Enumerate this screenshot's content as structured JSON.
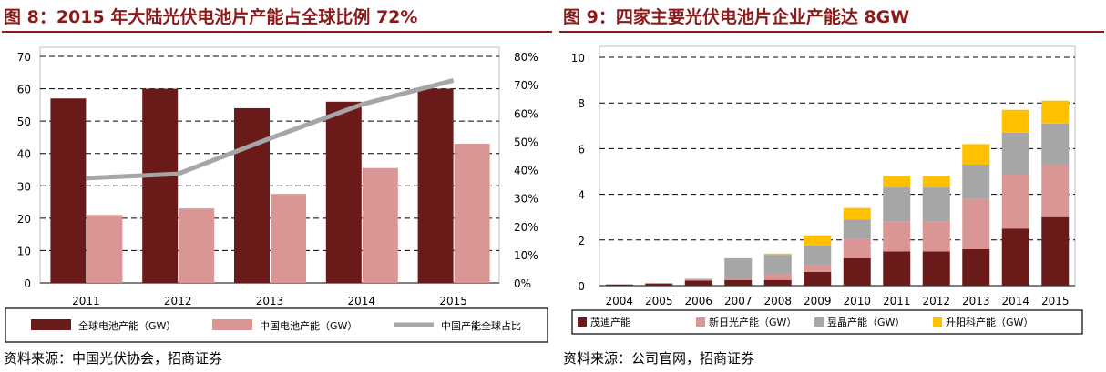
{
  "colors": {
    "title": "#8b1a1a",
    "dark_red": "#6b1a1a",
    "pink": "#d99694",
    "gray_line": "#a6a6a6",
    "gray_bar": "#a6a6a6",
    "gold": "#ffc000"
  },
  "left": {
    "title": "图 8：2015 年大陆光伏电池片产能占全球比例 72%",
    "source": "资料来源：中国光伏协会，招商证券",
    "chart_data": {
      "type": "bar",
      "categories": [
        "2011",
        "2012",
        "2013",
        "2014",
        "2015"
      ],
      "series": [
        {
          "name": "全球电池产能（GW）",
          "kind": "bar",
          "axis": "left",
          "color": "#6b1a1a",
          "values": [
            57,
            60,
            54,
            56,
            60
          ]
        },
        {
          "name": "中国电池产能（GW）",
          "kind": "bar",
          "axis": "left",
          "color": "#d99694",
          "values": [
            21,
            23,
            27.5,
            35.5,
            43
          ]
        },
        {
          "name": "中国产能全球占比",
          "kind": "line",
          "axis": "right",
          "color": "#a6a6a6",
          "values": [
            37,
            38.5,
            51,
            63,
            71.5
          ]
        }
      ],
      "y_left": {
        "lim": [
          0,
          70
        ],
        "ticks": [
          "0",
          "10",
          "20",
          "30",
          "40",
          "50",
          "60",
          "70"
        ]
      },
      "y_right": {
        "lim": [
          0,
          80
        ],
        "ticks": [
          "0%",
          "10%",
          "20%",
          "30%",
          "40%",
          "50%",
          "60%",
          "70%",
          "80%"
        ]
      },
      "grid": "dashed-horizontal",
      "legend": "bottom"
    }
  },
  "right": {
    "title": "图 9：四家主要光伏电池片企业产能达 8GW",
    "source": "资料来源：公司官网，招商证券",
    "chart_data": {
      "type": "bar",
      "stacked": true,
      "categories": [
        "2004",
        "2005",
        "2006",
        "2007",
        "2008",
        "2009",
        "2010",
        "2011",
        "2012",
        "2013",
        "2014",
        "2015"
      ],
      "series": [
        {
          "name": "茂迪产能",
          "color": "#6b1a1a",
          "values": [
            0.05,
            0.08,
            0.22,
            0.25,
            0.25,
            0.6,
            1.2,
            1.5,
            1.5,
            1.6,
            2.5,
            3.0
          ]
        },
        {
          "name": "新日光产能（GW）",
          "color": "#d99694",
          "values": [
            0,
            0.02,
            0.03,
            0.05,
            0.25,
            0.3,
            0.85,
            1.3,
            1.3,
            2.2,
            2.4,
            2.3
          ]
        },
        {
          "name": "昱晶产能（GW）",
          "color": "#a6a6a6",
          "values": [
            0,
            0.02,
            0.05,
            0.9,
            0.85,
            0.85,
            0.85,
            1.5,
            1.5,
            1.5,
            1.8,
            1.8
          ]
        },
        {
          "name": "升阳科产能（GW）",
          "color": "#ffc000",
          "values": [
            0,
            0,
            0,
            0,
            0.05,
            0.45,
            0.5,
            0.5,
            0.5,
            0.9,
            1.0,
            1.0
          ]
        }
      ],
      "y": {
        "lim": [
          0,
          10
        ],
        "ticks": [
          "0",
          "2",
          "4",
          "6",
          "8",
          "10"
        ]
      },
      "grid": "dashed-horizontal",
      "legend": "bottom"
    }
  }
}
